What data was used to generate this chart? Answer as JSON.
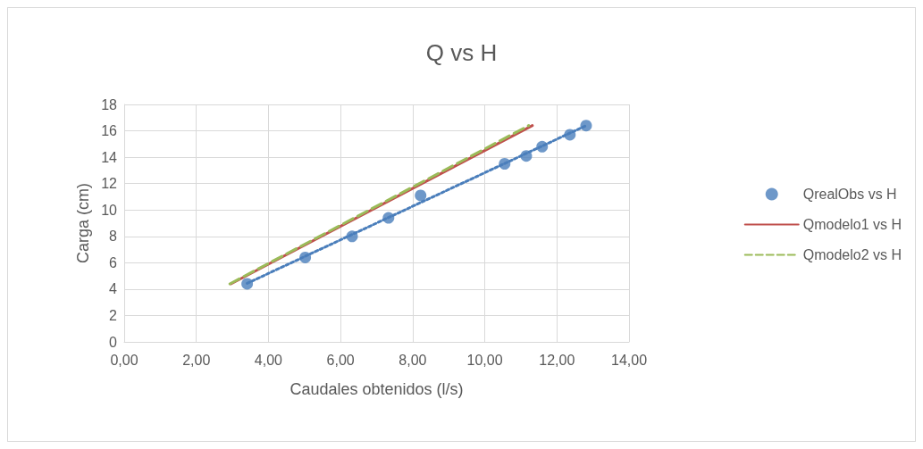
{
  "chart_data": {
    "type": "line",
    "title": "Q vs H",
    "xlabel": "Caudales obtenidos (l/s)",
    "ylabel": "Carga (cm)",
    "xlim": [
      0,
      14
    ],
    "xticks": [
      {
        "value": 0,
        "label": "0,00"
      },
      {
        "value": 2,
        "label": "2,00"
      },
      {
        "value": 4,
        "label": "4,00"
      },
      {
        "value": 6,
        "label": "6,00"
      },
      {
        "value": 8,
        "label": "8,00"
      },
      {
        "value": 10,
        "label": "10,00"
      },
      {
        "value": 12,
        "label": "12,00"
      },
      {
        "value": 14,
        "label": "14,00"
      }
    ],
    "ylim": [
      0,
      18
    ],
    "yticks": [
      0,
      2,
      4,
      6,
      8,
      10,
      12,
      14,
      16,
      18
    ],
    "grid": true,
    "legend": "right",
    "series": [
      {
        "name": "QrealObs vs H",
        "type": "scatter",
        "color": "#4a7ebb",
        "marker": "circle",
        "x": [
          3.41,
          5.02,
          6.32,
          7.33,
          8.22,
          10.55,
          11.15,
          11.59,
          12.36,
          12.81
        ],
        "values": [
          4.4,
          6.4,
          8.0,
          9.4,
          11.1,
          13.5,
          14.1,
          14.8,
          15.7,
          16.4
        ]
      },
      {
        "type": "line",
        "color": "#4a7ebb",
        "marker": "none",
        "line_style": "dotted",
        "x": [
          3.41,
          12.81
        ],
        "values": [
          4.44,
          16.4
        ]
      },
      {
        "name": "Qmodelo1 vs H",
        "color": "#c0504d",
        "marker": "none",
        "line_style": "solid",
        "x": [
          2.96,
          11.32
        ],
        "values": [
          4.4,
          16.4
        ]
      },
      {
        "name": "Qmodelo2 vs H",
        "type": "line",
        "color": "#9bbb59",
        "marker": "none",
        "line_style": "dashed",
        "x": [
          2.93,
          11.22
        ],
        "values": [
          4.4,
          16.4
        ]
      }
    ]
  }
}
